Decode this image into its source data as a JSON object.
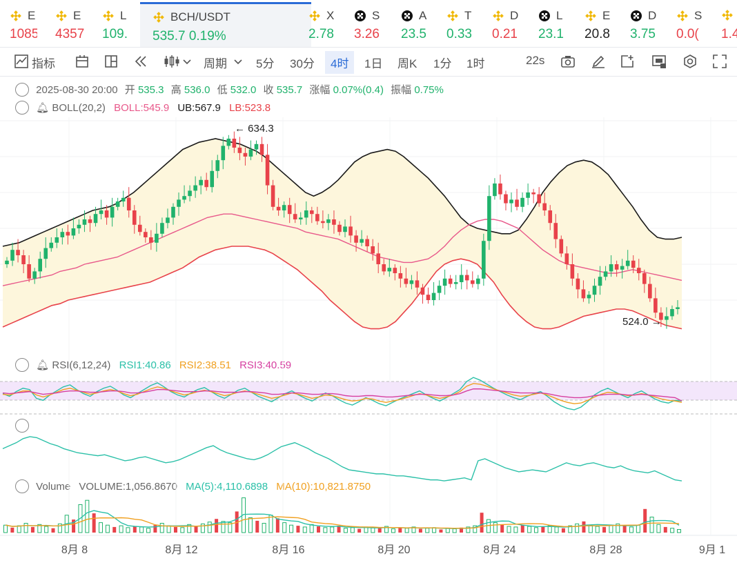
{
  "tickers": [
    {
      "name": "E",
      "price": "1085",
      "color": "#e8424a",
      "icon": "binance-icon"
    },
    {
      "name": "E",
      "price": "4357",
      "color": "#e8424a",
      "icon": "binance-icon"
    },
    {
      "name": "L",
      "price": "109.",
      "color": "#20b26c",
      "icon": "binance-icon"
    },
    {
      "name": "BCH/USDT",
      "price": "535.7",
      "change": "0.19%",
      "color": "#20b26c",
      "icon": "binance-icon",
      "selected": true
    },
    {
      "name": "X",
      "price": "2.78",
      "color": "#20b26c",
      "icon": "binance-icon"
    },
    {
      "name": "S",
      "price": "3.26",
      "color": "#e8424a",
      "icon": "checker-icon"
    },
    {
      "name": "A",
      "price": "23.5",
      "color": "#20b26c",
      "icon": "checker-icon"
    },
    {
      "name": "T",
      "price": "0.33",
      "color": "#20b26c",
      "icon": "binance-icon"
    },
    {
      "name": "D",
      "price": "0.21",
      "color": "#e8424a",
      "icon": "binance-icon"
    },
    {
      "name": "L",
      "price": "23.1",
      "color": "#20b26c",
      "icon": "checker-icon"
    },
    {
      "name": "E",
      "price": "20.8",
      "color": "#222222",
      "icon": "binance-icon"
    },
    {
      "name": "D",
      "price": "3.75",
      "color": "#20b26c",
      "icon": "checker-icon"
    },
    {
      "name": "S",
      "price": "0.0(",
      "color": "#e8424a",
      "icon": "binance-icon"
    },
    {
      "name": "",
      "price": "1.4",
      "color": "#e8424a",
      "icon": "binance-icon"
    }
  ],
  "toolbar": {
    "indicators": "指标",
    "period": "周期",
    "intervals": [
      "5分",
      "30分",
      "4时",
      "1日",
      "周K",
      "1分",
      "1时"
    ],
    "active_interval": "4时",
    "countdown": "22s"
  },
  "ohlc": {
    "date": "2025-08-30 20:00",
    "open_label": "开",
    "open": "535.3",
    "high_label": "高",
    "high": "536.0",
    "low_label": "低",
    "low": "532.0",
    "close_label": "收",
    "close": "535.7",
    "change_label": "涨幅",
    "change": "0.07%(0.4)",
    "amp_label": "振幅",
    "amp": "0.75%"
  },
  "boll": {
    "name": "BOLL(20,2)",
    "boll": "BOLL:545.9",
    "ub": "UB:567.9",
    "lb": "LB:523.8"
  },
  "rsi": {
    "name": "RSI(6,12,24)",
    "rsi1": "RSI1:40.86",
    "rsi2": "RSI2:38.51",
    "rsi3": "RSI3:40.59"
  },
  "volume": {
    "name": "Volume",
    "vol": "VOLUME:1,056.8670",
    "ma5": "MA(5):4,110.6898",
    "ma10": "MA(10):10,821.8750"
  },
  "colors": {
    "up": "#20b26c",
    "down": "#e8424a",
    "ub": "#1a1a1a",
    "mid": "#e8588a",
    "lb": "#e8424a",
    "band": "#fdf6dc",
    "rsi1": "#2bc0a8",
    "rsi2": "#f0a020",
    "rsi3": "#d63fa0",
    "accent": "#2a6bd6"
  },
  "chart_data": {
    "type": "candlestick",
    "interval": "4h",
    "x_labels": [
      "8月 8",
      "8月 12",
      "8月 16",
      "8月 20",
      "8月 24",
      "8月 28",
      "9月 1"
    ],
    "high_marker": "634.3",
    "low_marker": "524.0",
    "price_range": [
      515,
      640
    ],
    "closes": [
      562,
      568,
      565,
      560,
      552,
      556,
      563,
      569,
      572,
      575,
      578,
      576,
      580,
      582,
      585,
      583,
      588,
      590,
      586,
      592,
      595,
      597,
      590,
      582,
      578,
      575,
      572,
      577,
      583,
      586,
      592,
      596,
      598,
      601,
      604,
      607,
      603,
      612,
      618,
      626,
      630,
      625,
      622,
      620,
      624,
      627,
      621,
      604,
      592,
      590,
      593,
      588,
      585,
      586,
      590,
      588,
      584,
      583,
      585,
      582,
      578,
      581,
      576,
      572,
      574,
      570,
      566,
      560,
      556,
      558,
      555,
      552,
      549,
      551,
      547,
      543,
      540,
      544,
      548,
      552,
      549,
      550,
      554,
      551,
      549,
      552,
      573,
      598,
      605,
      599,
      594,
      596,
      592,
      597,
      600,
      599,
      594,
      590,
      583,
      574,
      566,
      560,
      552,
      546,
      541,
      543,
      548,
      553,
      556,
      560,
      557,
      559,
      562,
      558,
      555,
      549,
      541,
      533,
      529,
      531,
      535,
      536
    ],
    "ub": [
      570,
      571,
      572,
      574,
      576,
      578,
      580,
      582,
      584,
      586,
      588,
      590,
      591,
      592,
      594,
      597,
      600,
      604,
      608,
      612,
      616,
      620,
      624,
      626,
      628,
      629,
      630,
      629,
      628,
      627,
      625,
      623,
      620,
      616,
      612,
      608,
      604,
      600,
      598,
      600,
      603,
      607,
      612,
      617,
      620,
      622,
      623,
      624,
      623,
      620,
      616,
      612,
      608,
      603,
      598,
      592,
      586,
      582,
      580,
      579,
      578,
      577,
      577,
      579,
      585,
      592,
      600,
      606,
      611,
      615,
      617,
      618,
      617,
      614,
      610,
      604,
      598,
      592,
      585,
      579,
      575,
      574,
      574,
      575
    ],
    "mid": [
      548,
      549,
      550,
      551,
      552,
      553,
      554,
      556,
      557,
      558,
      560,
      561,
      562,
      563,
      564,
      566,
      568,
      570,
      572,
      574,
      576,
      578,
      580,
      582,
      584,
      586,
      587,
      588,
      588,
      587,
      586,
      585,
      584,
      583,
      582,
      581,
      580,
      578,
      577,
      576,
      575,
      574,
      572,
      570,
      568,
      566,
      564,
      563,
      562,
      561,
      561,
      562,
      563,
      566,
      570,
      575,
      579,
      582,
      584,
      585,
      585,
      584,
      582,
      580,
      576,
      572,
      568,
      565,
      562,
      560,
      559,
      558,
      557,
      556,
      555,
      555,
      556,
      557,
      556,
      555,
      554,
      553,
      552,
      551
    ],
    "lb": [
      525,
      527,
      529,
      531,
      533,
      535,
      537,
      538,
      540,
      541,
      542,
      543,
      544,
      545,
      546,
      547,
      548,
      549,
      550,
      552,
      554,
      556,
      558,
      561,
      564,
      566,
      568,
      569,
      570,
      570,
      570,
      569,
      568,
      566,
      563,
      560,
      557,
      553,
      549,
      545,
      540,
      536,
      532,
      528,
      525,
      524,
      524,
      525,
      528,
      533,
      538,
      544,
      550,
      556,
      560,
      562,
      563,
      562,
      560,
      555,
      550,
      543,
      537,
      532,
      528,
      525,
      524,
      524,
      525,
      527,
      529,
      531,
      532,
      533,
      534,
      535,
      535,
      534,
      532,
      530,
      528,
      526,
      525,
      524
    ],
    "rsi1": [
      52,
      48,
      55,
      60,
      58,
      45,
      42,
      50,
      56,
      62,
      65,
      58,
      52,
      48,
      55,
      60,
      63,
      57,
      50,
      46,
      52,
      58,
      64,
      68,
      62,
      55,
      50,
      47,
      53,
      58,
      61,
      55,
      49,
      45,
      51,
      57,
      60,
      54,
      48,
      44,
      40,
      46,
      52,
      56,
      50,
      45,
      41,
      47,
      53,
      49,
      43,
      38,
      35,
      40,
      46,
      42,
      37,
      34,
      39,
      44,
      48,
      52,
      56,
      50,
      45,
      41,
      46,
      52,
      58,
      70,
      76,
      72,
      66,
      60,
      55,
      50,
      46,
      43,
      48,
      52,
      55,
      48,
      40,
      34,
      30,
      28,
      32,
      40,
      50,
      56,
      60,
      55,
      50,
      46,
      52,
      56,
      50,
      44,
      40,
      38,
      42,
      41
    ],
    "rsi2": [
      51,
      50,
      53,
      56,
      56,
      50,
      47,
      50,
      54,
      58,
      60,
      57,
      54,
      51,
      53,
      56,
      58,
      56,
      52,
      49,
      51,
      55,
      59,
      62,
      60,
      56,
      53,
      50,
      52,
      55,
      57,
      55,
      52,
      49,
      51,
      54,
      56,
      54,
      51,
      48,
      45,
      47,
      50,
      53,
      51,
      48,
      45,
      47,
      50,
      49,
      46,
      43,
      41,
      42,
      45,
      44,
      41,
      39,
      41,
      43,
      46,
      49,
      52,
      50,
      47,
      45,
      47,
      50,
      55,
      63,
      67,
      66,
      63,
      59,
      56,
      53,
      50,
      48,
      49,
      51,
      53,
      50,
      46,
      42,
      39,
      37,
      38,
      42,
      47,
      51,
      54,
      53,
      51,
      49,
      50,
      52,
      50,
      47,
      44,
      42,
      41,
      39
    ],
    "rsi3": [
      53,
      52,
      53,
      54,
      55,
      53,
      51,
      52,
      53,
      55,
      56,
      56,
      55,
      54,
      54,
      55,
      56,
      56,
      55,
      53,
      53,
      54,
      56,
      58,
      58,
      57,
      56,
      55,
      55,
      55,
      56,
      56,
      55,
      54,
      54,
      54,
      55,
      55,
      54,
      53,
      51,
      51,
      52,
      53,
      53,
      52,
      51,
      51,
      52,
      52,
      51,
      49,
      48,
      48,
      49,
      49,
      48,
      47,
      47,
      48,
      49,
      50,
      51,
      51,
      50,
      49,
      49,
      50,
      52,
      56,
      59,
      59,
      58,
      57,
      56,
      55,
      54,
      53,
      53,
      53,
      53,
      52,
      50,
      48,
      47,
      46,
      46,
      47,
      49,
      50,
      51,
      51,
      51,
      50,
      50,
      51,
      50,
      49,
      48,
      47,
      46,
      41
    ],
    "line2": [
      52,
      55,
      58,
      62,
      64,
      63,
      60,
      57,
      55,
      52,
      50,
      48,
      47,
      46,
      45,
      46,
      44,
      42,
      40,
      41,
      43,
      44,
      42,
      40,
      38,
      39,
      41,
      44,
      47,
      50,
      53,
      55,
      51,
      48,
      46,
      44,
      42,
      41,
      43,
      46,
      50,
      54,
      56,
      58,
      55,
      52,
      48,
      45,
      42,
      38,
      34,
      31,
      30,
      29,
      28,
      27,
      27,
      26,
      25,
      25,
      24,
      23,
      22,
      21,
      21,
      20,
      21,
      22,
      23,
      21,
      40,
      42,
      39,
      36,
      33,
      31,
      29,
      30,
      31,
      30,
      29,
      32,
      35,
      38,
      36,
      35,
      37,
      38,
      36,
      34,
      33,
      35,
      32,
      30,
      29,
      28,
      30,
      27,
      24,
      21,
      20
    ],
    "volume": [
      1.2,
      0.8,
      1.1,
      1.5,
      0.9,
      1.3,
      1.0,
      0.7,
      1.4,
      2.8,
      2.1,
      4.5,
      5.2,
      3.1,
      1.6,
      1.2,
      0.9,
      1.1,
      0.8,
      1.0,
      0.9,
      0.7,
      1.2,
      1.5,
      1.1,
      0.9,
      0.8,
      1.3,
      1.0,
      1.4,
      1.7,
      2.2,
      1.8,
      1.6,
      3.4,
      5.6,
      2.4,
      1.9,
      1.5,
      2.8,
      2.3,
      1.6,
      1.2,
      1.1,
      0.9,
      1.3,
      1.0,
      0.8,
      0.9,
      1.1,
      0.7,
      0.8,
      0.6,
      0.9,
      0.8,
      0.7,
      1.0,
      0.6,
      0.8,
      0.7,
      0.9,
      0.6,
      0.7,
      0.8,
      0.5,
      0.7,
      0.6,
      0.8,
      0.9,
      1.1,
      3.2,
      2.1,
      1.6,
      1.3,
      1.0,
      0.9,
      1.2,
      1.0,
      0.8,
      0.9,
      1.1,
      0.9,
      0.7,
      1.1,
      1.4,
      1.8,
      1.2,
      1.0,
      0.9,
      1.2,
      1.4,
      1.1,
      0.9,
      1.2,
      3.8,
      2.5,
      1.3,
      0.9,
      0.7,
      0.5
    ]
  }
}
